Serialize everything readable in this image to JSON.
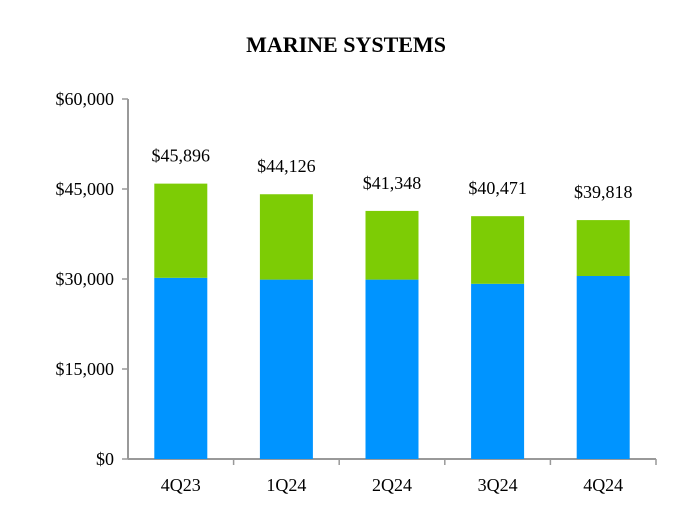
{
  "chart_data": {
    "type": "bar",
    "stacked": true,
    "title": "MARINE SYSTEMS",
    "xlabel": "",
    "ylabel": "",
    "categories": [
      "4Q23",
      "1Q24",
      "2Q24",
      "3Q24",
      "4Q24"
    ],
    "series": [
      {
        "values": [
          30200,
          29900,
          29900,
          29200,
          30500
        ],
        "color": "#0094FF"
      },
      {
        "values": [
          15696,
          14226,
          11448,
          11271,
          9318
        ],
        "color": "#7DCC05"
      }
    ],
    "totals": [
      45896,
      44126,
      41348,
      40471,
      39818
    ],
    "total_labels": [
      "$45,896",
      "$44,126",
      "$41,348",
      "$40,471",
      "$39,818"
    ],
    "ylim": [
      0,
      60000
    ],
    "yticks": [
      0,
      15000,
      30000,
      45000,
      60000
    ],
    "ytick_labels": [
      "$0",
      "$15,000",
      "$30,000",
      "$45,000",
      "$60,000"
    ],
    "grid": false,
    "legend": "none",
    "axis_color": "#999999"
  }
}
